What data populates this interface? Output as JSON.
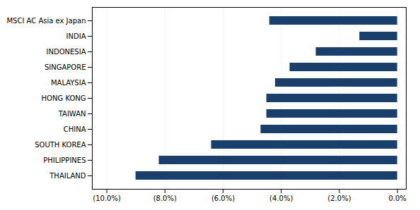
{
  "chart_data": {
    "type": "bar",
    "orientation": "horizontal",
    "categories": [
      "MSCI AC Asia ex Japan",
      "INDIA",
      "INDONESIA",
      "SINGAPORE",
      "MALAYSIA",
      "HONG KONG",
      "TAIWAN",
      "CHINA",
      "SOUTH KOREA",
      "PHILIPPINES",
      "THAILAND"
    ],
    "values": [
      -4.4,
      -1.3,
      -2.8,
      -3.7,
      -4.2,
      -4.5,
      -4.5,
      -4.7,
      -6.4,
      -8.2,
      -9.0
    ],
    "color": "#1b3f6b",
    "xlim": [
      -10.5,
      0.3
    ],
    "xticks": [
      {
        "value": -10.0,
        "label": "(10.0%)"
      },
      {
        "value": -8.0,
        "label": "(8.0%)"
      },
      {
        "value": -6.0,
        "label": "(6.0%)"
      },
      {
        "value": -4.0,
        "label": "(4.0%)"
      },
      {
        "value": -2.0,
        "label": "(2.0%)"
      },
      {
        "value": 0.0,
        "label": "0.0%"
      }
    ],
    "grid": true
  }
}
